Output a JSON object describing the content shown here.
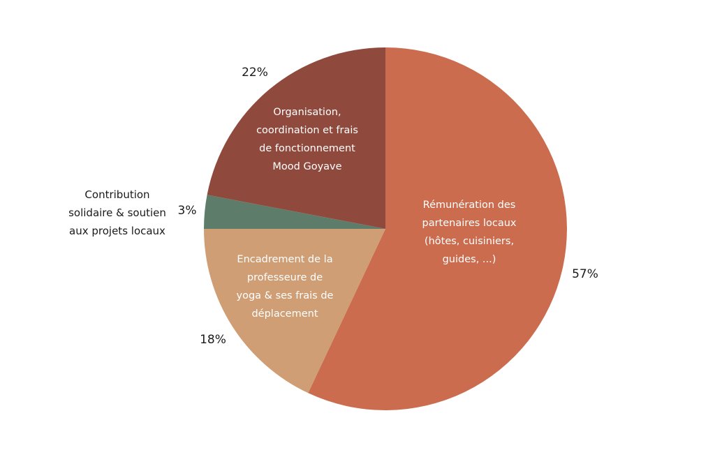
{
  "chart_data": {
    "type": "pie",
    "slices": [
      {
        "label": "Rémunération des partenaires locaux (hôtes, cuisiniers, guides, ...)",
        "label_lines": [
          "Rémunération des",
          "partenaires locaux",
          "(hôtes, cuisiniers,",
          "guides, ...)"
        ],
        "value": 57,
        "value_label": "57%",
        "color": "#cb6c4f"
      },
      {
        "label": "Encadrement de la professeure de yoga & ses frais de déplacement",
        "label_lines": [
          "Encadrement de la",
          "professeure de",
          "yoga & ses frais de",
          "déplacement"
        ],
        "value": 18,
        "value_label": "18%",
        "color": "#cf9e74"
      },
      {
        "label": "Contribution solidaire & soutien aux projets locaux",
        "label_lines": [
          "Contribution",
          "solidaire & soutien",
          "aux projets locaux"
        ],
        "value": 3,
        "value_label": "3%",
        "color": "#5e7c6a"
      },
      {
        "label": "Organisation, coordination et frais de fonctionnement Mood Goyave",
        "label_lines": [
          "Organisation,",
          "coordination et frais",
          "de fonctionnement",
          "Mood Goyave"
        ],
        "value": 22,
        "value_label": "22%",
        "color": "#8f4a3d"
      }
    ],
    "start": "12 o'clock",
    "direction": "clockwise",
    "legend": "none"
  }
}
